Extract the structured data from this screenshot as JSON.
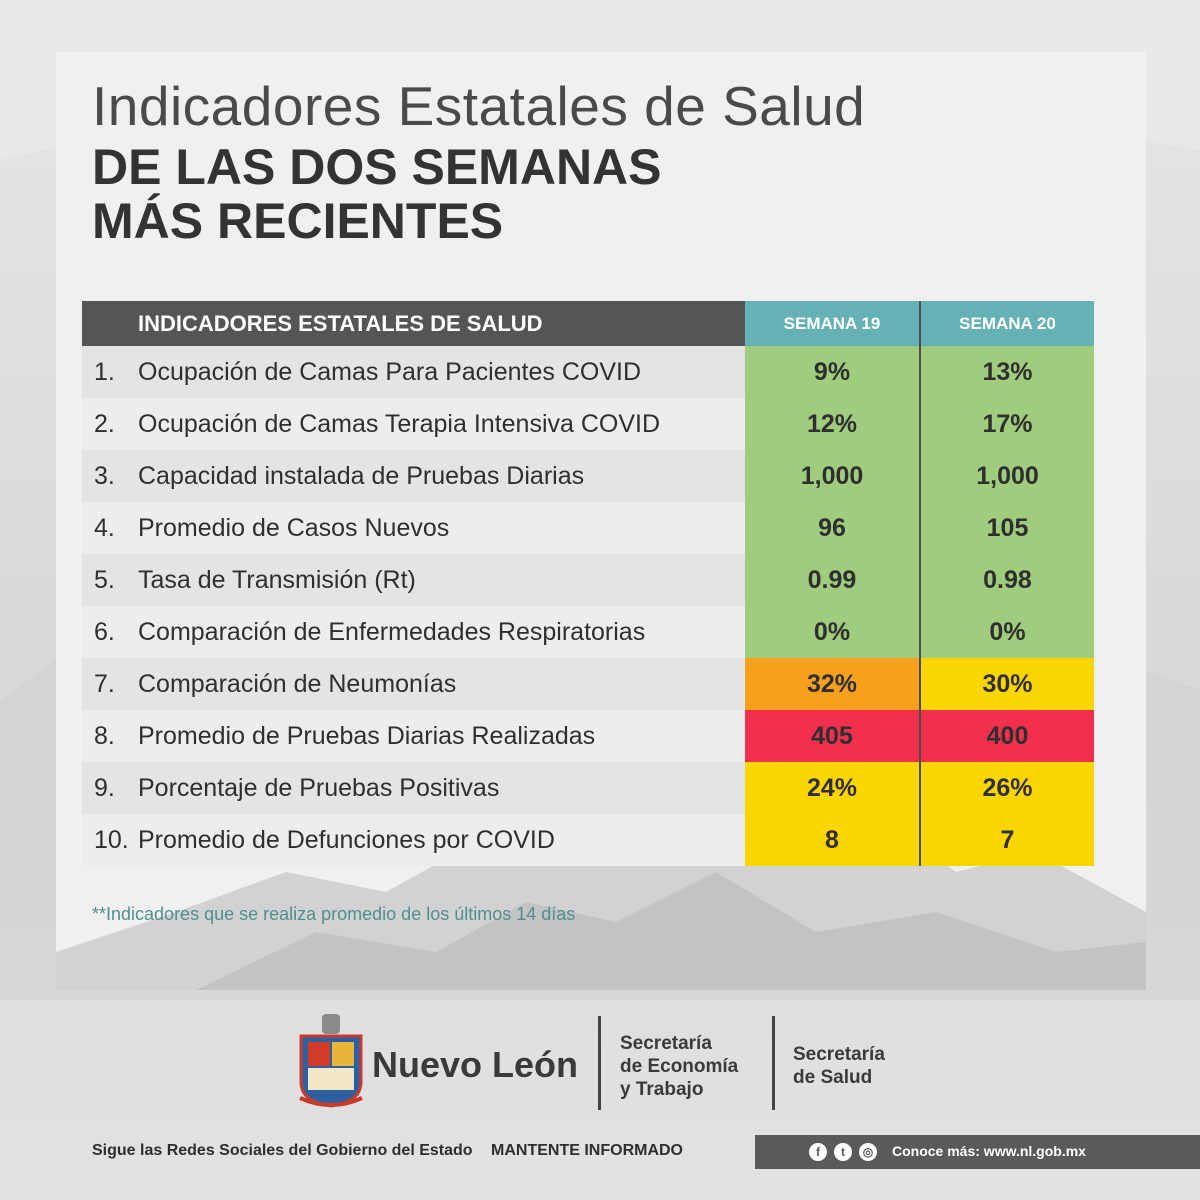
{
  "title": {
    "line1": "Indicadores Estatales de Salud",
    "line2": "DE LAS DOS SEMANAS",
    "line3": "MÁS RECIENTES"
  },
  "table": {
    "header": "INDICADORES ESTATALES DE SALUD",
    "week1": "SEMANA 19",
    "week2": "SEMANA 20",
    "rows": [
      {
        "num": "1.",
        "label": "Ocupación de Camas Para Pacientes COVID",
        "w1": "9%",
        "w2": "13%",
        "c1": "#9fcc7d",
        "c2": "#9fcc7d"
      },
      {
        "num": "2.",
        "label": "Ocupación de Camas Terapia Intensiva COVID",
        "w1": "12%",
        "w2": "17%",
        "c1": "#9fcc7d",
        "c2": "#9fcc7d"
      },
      {
        "num": "3.",
        "label": "Capacidad instalada de Pruebas Diarias",
        "w1": "1,000",
        "w2": "1,000",
        "c1": "#9fcc7d",
        "c2": "#9fcc7d"
      },
      {
        "num": "4.",
        "label": "Promedio de Casos Nuevos",
        "w1": "96",
        "w2": "105",
        "c1": "#9fcc7d",
        "c2": "#9fcc7d"
      },
      {
        "num": "5.",
        "label": "Tasa de Transmisión (Rt)",
        "w1": "0.99",
        "w2": "0.98",
        "c1": "#9fcc7d",
        "c2": "#9fcc7d"
      },
      {
        "num": "6.",
        "label": "Comparación de Enfermedades Respiratorias",
        "w1": "0%",
        "w2": "0%",
        "c1": "#9fcc7d",
        "c2": "#9fcc7d"
      },
      {
        "num": "7.",
        "label": "Comparación de Neumonías",
        "w1": "32%",
        "w2": "30%",
        "c1": "#f7a01e",
        "c2": "#fdd600"
      },
      {
        "num": "8.",
        "label": "Promedio de Pruebas Diarias Realizadas",
        "w1": "405",
        "w2": "400",
        "c1": "#f2304d",
        "c2": "#f2304d"
      },
      {
        "num": "9.",
        "label": "Porcentaje de Pruebas Positivas",
        "w1": "24%",
        "w2": "26%",
        "c1": "#fdd600",
        "c2": "#fdd600"
      },
      {
        "num": "10.",
        "label": "Promedio de Defunciones por COVID",
        "w1": "8",
        "w2": "7",
        "c1": "#fdd600",
        "c2": "#fdd600"
      }
    ]
  },
  "note": "**Indicadores que se realiza promedio de los últimos 14 días",
  "logos": {
    "state": "Nuevo León",
    "dep1": [
      "Secretaría",
      "de Economía",
      "y Trabajo"
    ],
    "dep2": [
      "Secretaría",
      "de Salud"
    ]
  },
  "footer": {
    "follow": "Sigue las Redes Sociales del Gobierno del Estado",
    "informed": "MANTENTE INFORMADO",
    "site": "Conoce más: www.nl.gob.mx",
    "icons": [
      "facebook-icon",
      "twitter-icon",
      "instagram-icon"
    ]
  }
}
